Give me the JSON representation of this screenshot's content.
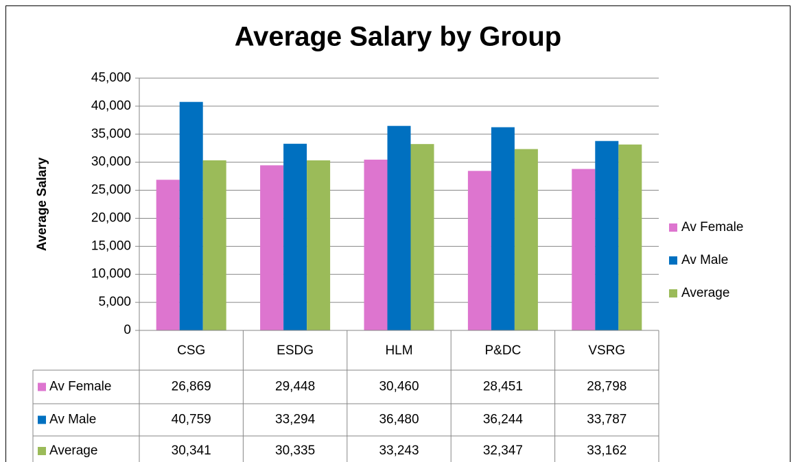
{
  "chart_data": {
    "type": "bar",
    "title": "Average Salary by Group",
    "y_label": "Average Salary",
    "categories": [
      "CSG",
      "ESDG",
      "HLM",
      "P&DC",
      "VSRG"
    ],
    "series": [
      {
        "name": "Av Female",
        "color": "#dd75cf",
        "values": [
          26869,
          29448,
          30460,
          28451,
          28798
        ],
        "value_labels": [
          "26,869",
          "29,448",
          "30,460",
          "28,451",
          "28,798"
        ]
      },
      {
        "name": "Av Male",
        "color": "#0070c0",
        "values": [
          40759,
          33294,
          36480,
          36244,
          33787
        ],
        "value_labels": [
          "40,759",
          "33,294",
          "36,480",
          "36,244",
          "33,787"
        ]
      },
      {
        "name": "Average",
        "color": "#9bbb59",
        "values": [
          30341,
          30335,
          33243,
          32347,
          33162
        ],
        "value_labels": [
          "30,341",
          "30,335",
          "33,243",
          "32,347",
          "33,162"
        ]
      }
    ],
    "ylim": [
      0,
      45000
    ],
    "yticks": [
      0,
      {
        "value": 5000,
        "label": "5,000"
      },
      {
        "value": 10000,
        "label": "10,000"
      },
      {
        "value": 15000,
        "label": "15,000"
      },
      {
        "value": 20000,
        "label": "20,000"
      },
      {
        "value": 25000,
        "label": "25,000"
      },
      {
        "value": 30000,
        "label": "30,000"
      },
      {
        "value": 35000,
        "label": "35,000"
      },
      {
        "value": 40000,
        "label": "40,000"
      },
      {
        "value": 45000,
        "label": "45,000"
      }
    ],
    "grid": true,
    "legend": "right"
  }
}
